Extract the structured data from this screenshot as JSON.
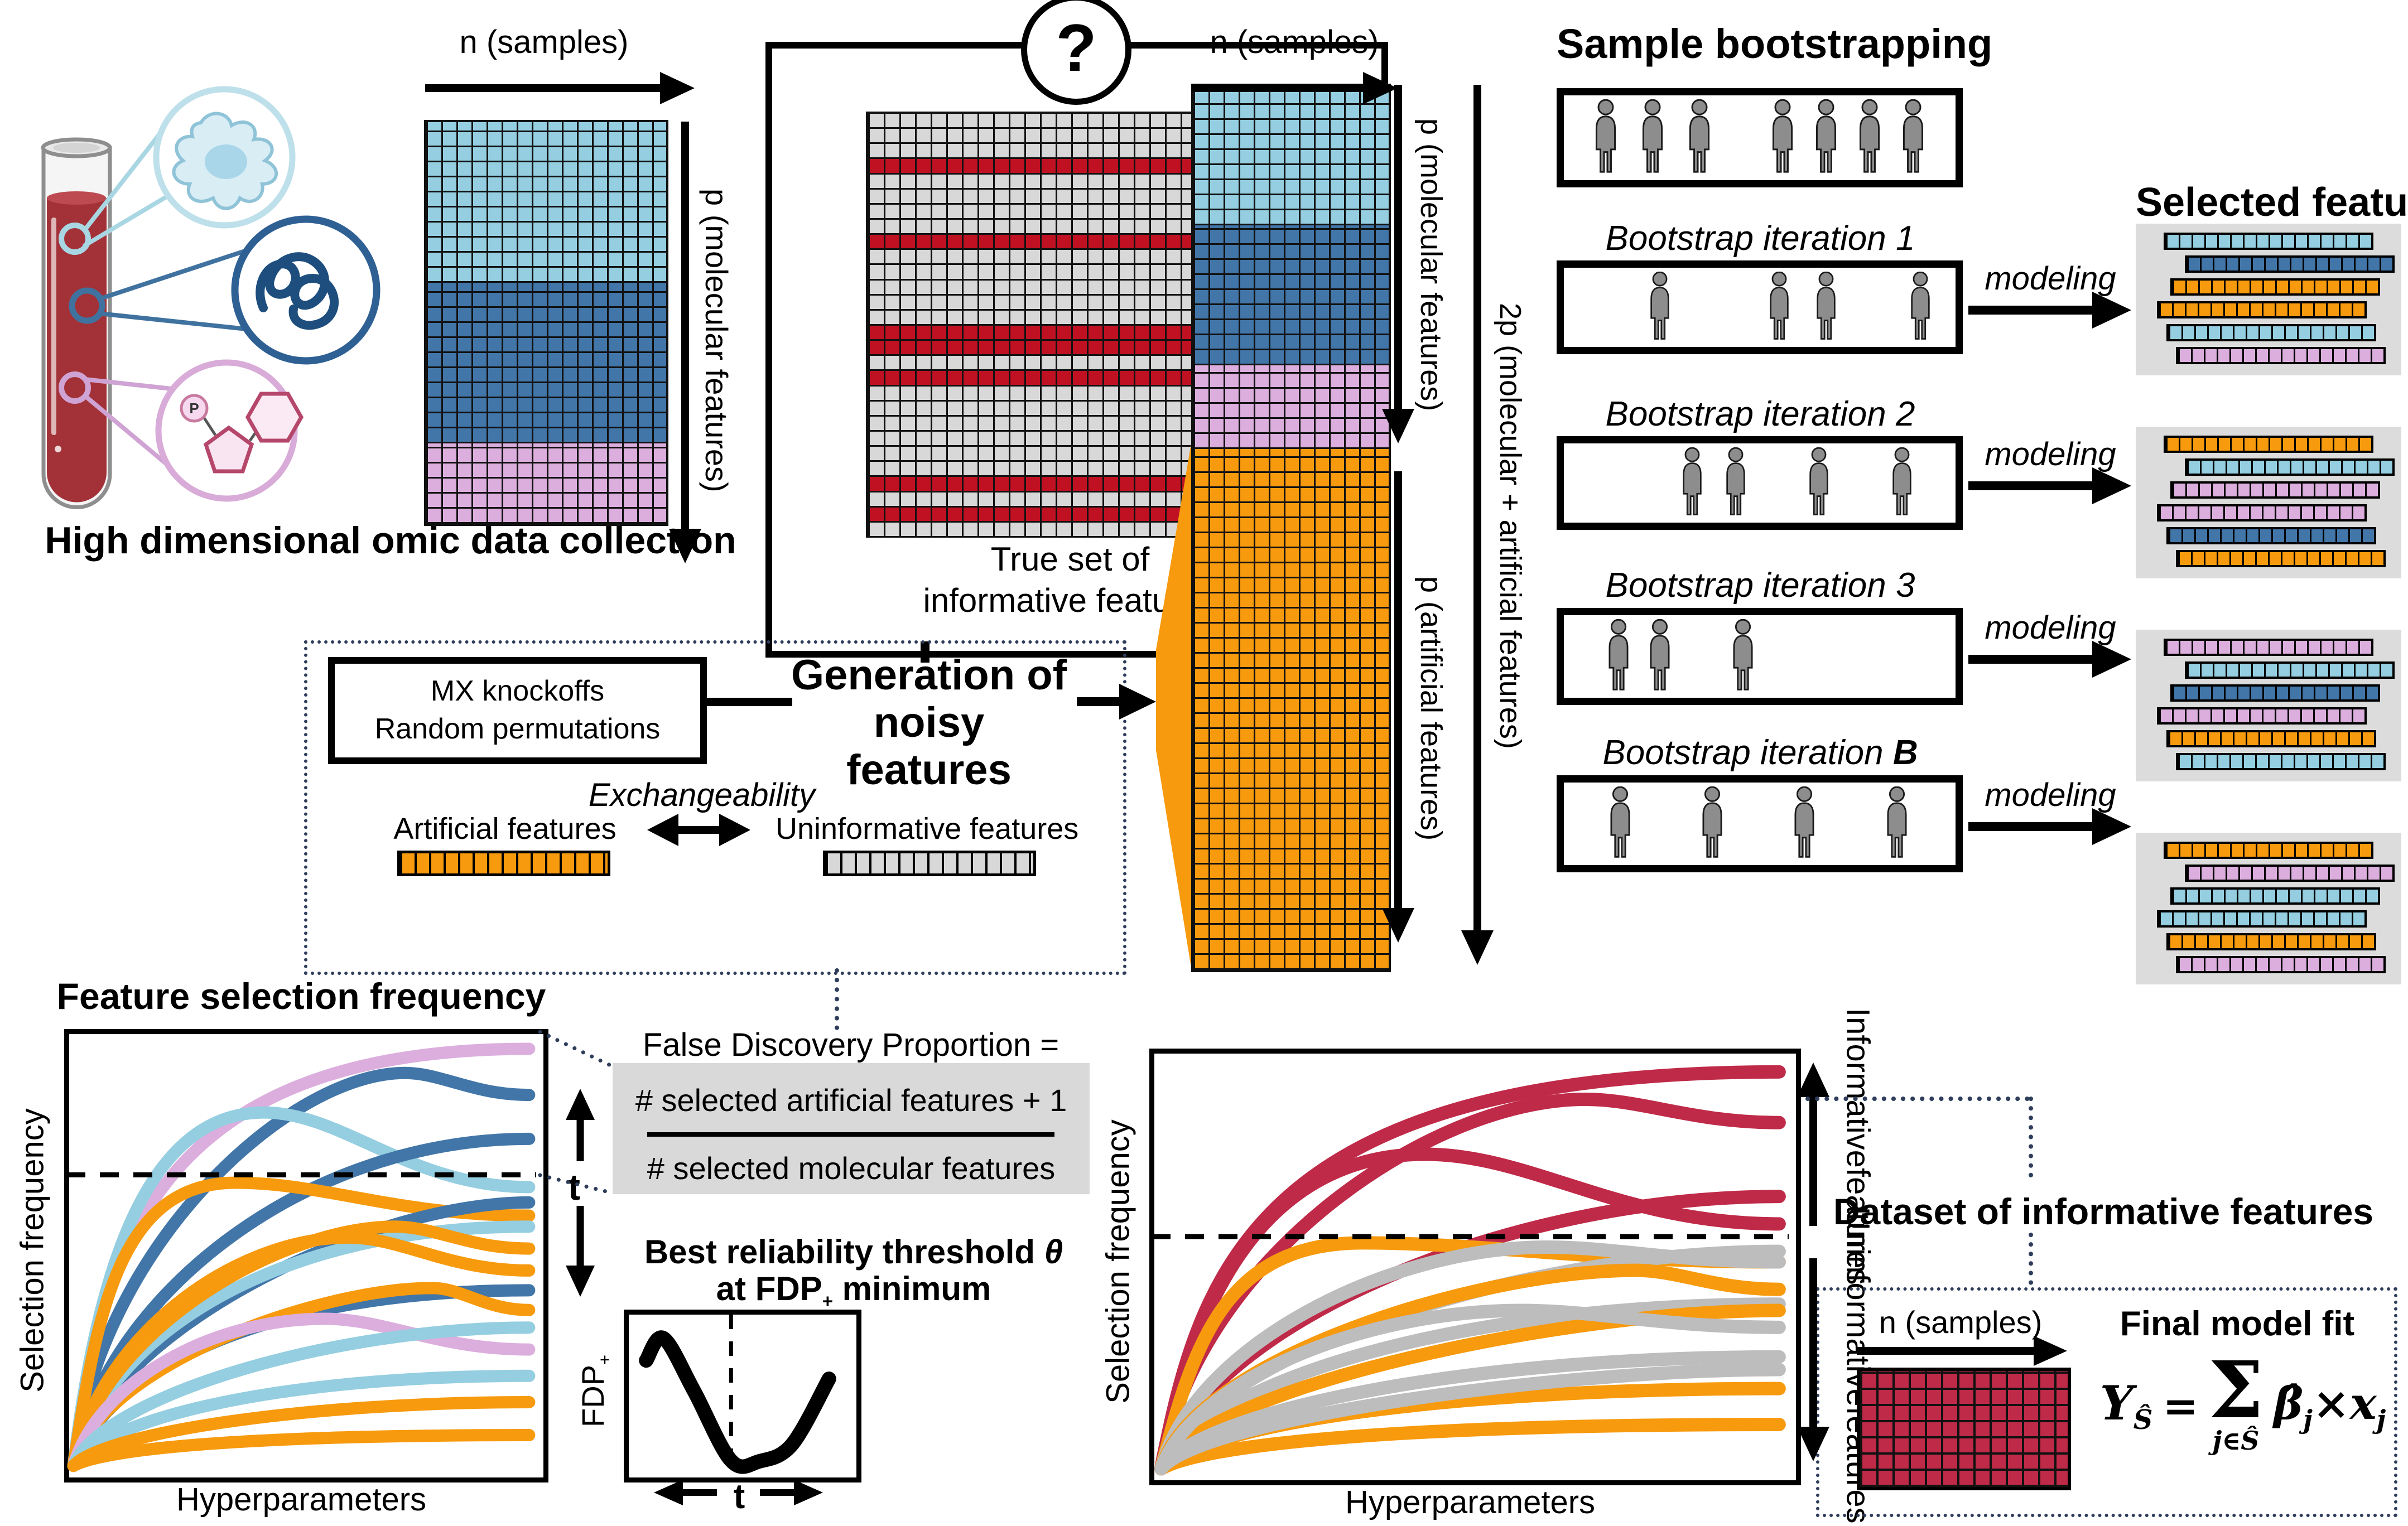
{
  "colors": {
    "lightblue": "#94cee0",
    "darkblue": "#4276a8",
    "pink": "#dcaede",
    "orange": "#f79a0d",
    "crimson": "#bf2a48",
    "red": "#c01122",
    "gray_cell": "#d8d8d8",
    "curve_gray": "#bdbdbd",
    "panel_bg": "#dcdcdc",
    "dotted_navy": "#2e3d5a",
    "person_gray": "#8d8d8d"
  },
  "left": {
    "title": "High dimensional omic data collection",
    "tube_icon": "blood-collection-tube",
    "circle_icons": [
      "immune-cell",
      "protein-squiggle",
      "nucleotide-molecule"
    ]
  },
  "matrix1": {
    "label_top": "n (samples)",
    "label_side": "p (molecular features)",
    "bands": [
      {
        "key": "lightblue",
        "frac": 0.4
      },
      {
        "key": "darkblue",
        "frac": 0.4
      },
      {
        "key": "pink",
        "frac": 0.2
      }
    ]
  },
  "true_set": {
    "question_mark": "?",
    "caption_line1": "True set of",
    "caption_line2": "informative features",
    "rows": 28,
    "red_rows": [
      3,
      8,
      14,
      15,
      17,
      24,
      26
    ],
    "check_rows": [
      3,
      8,
      14.5,
      17,
      24,
      26
    ],
    "check_glyph": "✔"
  },
  "noise": {
    "method_line1": "MX knockoffs",
    "method_line2": "Random permutations",
    "title_line1": "Generation of",
    "title_line2": "noisy features",
    "exchangeability": "Exchangeability",
    "artificial": "Artificial features",
    "uninformative": "Uninformative features",
    "artificial_strip_color": "orange",
    "uninformative_strip_color": "gray_cell"
  },
  "matrix2": {
    "label_top": "n (samples)",
    "label_molecular": "p (molecular features)",
    "label_artificial": "p (artificial features)",
    "label_2p": "2p (molecular + artificial features)",
    "bands": [
      {
        "key": "lightblue",
        "frac": 0.158
      },
      {
        "key": "darkblue",
        "frac": 0.158
      },
      {
        "key": "pink",
        "frac": 0.095
      },
      {
        "key": "orange",
        "frac": 0.589
      }
    ]
  },
  "bootstrap": {
    "title": "Sample bootstrapping",
    "modeling": "modeling",
    "population": {
      "persons": [
        0.06,
        0.19,
        0.32,
        0.55,
        0.67,
        0.79,
        0.91
      ]
    },
    "iterations": [
      {
        "label": "Bootstrap iteration",
        "num": "1",
        "num_bold": false,
        "persons": [
          0.21,
          0.54,
          0.67,
          0.93
        ]
      },
      {
        "label": "Bootstrap iteration",
        "num": "2",
        "num_bold": false,
        "persons": [
          0.3,
          0.42,
          0.65,
          0.88
        ]
      },
      {
        "label": "Bootstrap iteration",
        "num": "3",
        "num_bold": false,
        "persons": [
          0.095,
          0.21,
          0.44
        ]
      },
      {
        "label": "Bootstrap iteration",
        "num": "B",
        "num_bold": true,
        "persons": [
          0.1,
          0.355,
          0.61,
          0.865
        ]
      }
    ]
  },
  "selected": {
    "title": "Selected features",
    "panels": [
      [
        "lightblue",
        "darkblue",
        "orange",
        "orange",
        "lightblue",
        "pink"
      ],
      [
        "orange",
        "lightblue",
        "pink",
        "pink",
        "darkblue",
        "orange"
      ],
      [
        "pink",
        "lightblue",
        "darkblue",
        "pink",
        "orange",
        "lightblue"
      ],
      [
        "orange",
        "pink",
        "lightblue",
        "lightblue",
        "orange",
        "pink"
      ]
    ]
  },
  "fdp": {
    "heading": "False Discovery Proportion =",
    "numerator": "# selected artificial features + 1",
    "denominator": "# selected molecular features",
    "best_prefix": "Best reliability threshold ",
    "theta": "θ",
    "at": "at ",
    "fdp_word": "FDP",
    "plus": "+",
    "minimum": " minimum",
    "axis_y": "FDP",
    "axis_y_sub": "+",
    "t_label": "t"
  },
  "dataset": {
    "title": "Dataset of informative features",
    "n_label": "n (samples)",
    "fit_title": "Final model fit",
    "formula": {
      "Y": "Y",
      "Y_sub": "Ŝ",
      "eq": "=",
      "sigma": "Σ",
      "sigma_under": "j∈Ŝ",
      "beta": "β̂",
      "beta_sub": "j",
      "times": "×",
      "x": "x",
      "x_sub": "j"
    }
  },
  "chart_data": [
    {
      "id": "feature_selection_frequency_all",
      "type": "line",
      "title": "Feature selection frequency",
      "xlabel": "Hyperparameters",
      "ylabel": "Selection frequency",
      "threshold_label": "t",
      "threshold_frac": 0.327,
      "note": "schematic selection-frequency curves vs hyperparameters; e = final height (fraction from top), p/xp = peak, r = rise speed",
      "curves": [
        {
          "c": "pink",
          "e": 0.04,
          "r": 0.16
        },
        {
          "c": "darkblue",
          "e": 0.145,
          "p": 0.095,
          "xp": 0.72
        },
        {
          "c": "lightblue",
          "e": 0.355,
          "p": 0.185,
          "xp": 0.42
        },
        {
          "c": "darkblue",
          "e": 0.245,
          "r": 0.48
        },
        {
          "c": "orange",
          "e": 0.42,
          "p": 0.345,
          "xp": 0.36
        },
        {
          "c": "darkblue",
          "e": 0.39,
          "r": 0.62
        },
        {
          "c": "lightblue",
          "e": 0.445,
          "r": 0.4
        },
        {
          "c": "orange",
          "e": 0.495,
          "p": 0.445,
          "xp": 0.7
        },
        {
          "c": "orange",
          "e": 0.545,
          "p": 0.47,
          "xp": 0.6
        },
        {
          "c": "darkblue",
          "e": 0.59,
          "r": 0.38
        },
        {
          "c": "orange",
          "e": 0.635,
          "p": 0.585,
          "xp": 0.78
        },
        {
          "c": "pink",
          "e": 0.725,
          "p": 0.655,
          "xp": 0.55
        },
        {
          "c": "lightblue",
          "e": 0.675,
          "r": 0.55
        },
        {
          "c": "lightblue",
          "e": 0.785,
          "r": 0.42
        },
        {
          "c": "orange",
          "e": 0.845,
          "r": 0.48
        },
        {
          "c": "orange",
          "e": 0.92,
          "r": 0.32
        }
      ]
    },
    {
      "id": "fdp_vs_t",
      "type": "line",
      "title": "Best reliability threshold θ at FDP+ minimum",
      "xlabel": "t",
      "ylabel": "FDP+",
      "minimum_x_frac": 0.47,
      "points": [
        [
          0.08,
          0.3
        ],
        [
          0.16,
          0.155
        ],
        [
          0.3,
          0.5
        ],
        [
          0.47,
          0.955
        ],
        [
          0.6,
          0.96
        ],
        [
          0.75,
          0.85
        ],
        [
          0.92,
          0.42
        ]
      ]
    },
    {
      "id": "feature_selection_frequency_classified",
      "type": "line",
      "xlabel": "Hyperparameters",
      "ylabel": "Selection frequency",
      "threshold_frac": 0.44,
      "group_above": [
        "Informative",
        "features"
      ],
      "group_below": [
        "Uninformative",
        "features"
      ],
      "curves": [
        {
          "c": "crimson",
          "e": 0.05,
          "r": 0.15
        },
        {
          "c": "crimson",
          "e": 0.17,
          "p": 0.115,
          "xp": 0.68
        },
        {
          "c": "crimson",
          "e": 0.41,
          "p": 0.245,
          "xp": 0.43
        },
        {
          "c": "crimson",
          "e": 0.345,
          "r": 0.52
        },
        {
          "c": "orange",
          "e": 0.5,
          "p": 0.455,
          "xp": 0.33
        },
        {
          "c": "curve_gray",
          "e": 0.475,
          "r": 0.55
        },
        {
          "c": "curve_gray",
          "e": 0.5,
          "p": 0.465,
          "xp": 0.62
        },
        {
          "c": "orange",
          "e": 0.565,
          "p": 0.52,
          "xp": 0.76
        },
        {
          "c": "curve_gray",
          "e": 0.6,
          "r": 0.44
        },
        {
          "c": "orange",
          "e": 0.615,
          "r": 0.62
        },
        {
          "c": "curve_gray",
          "e": 0.655,
          "p": 0.615,
          "xp": 0.58
        },
        {
          "c": "curve_gray",
          "e": 0.725,
          "r": 0.46
        },
        {
          "c": "orange",
          "e": 0.8,
          "r": 0.4
        },
        {
          "c": "orange",
          "e": 0.885,
          "r": 0.33
        },
        {
          "c": "curve_gray",
          "e": 0.755,
          "r": 0.62
        }
      ]
    }
  ]
}
